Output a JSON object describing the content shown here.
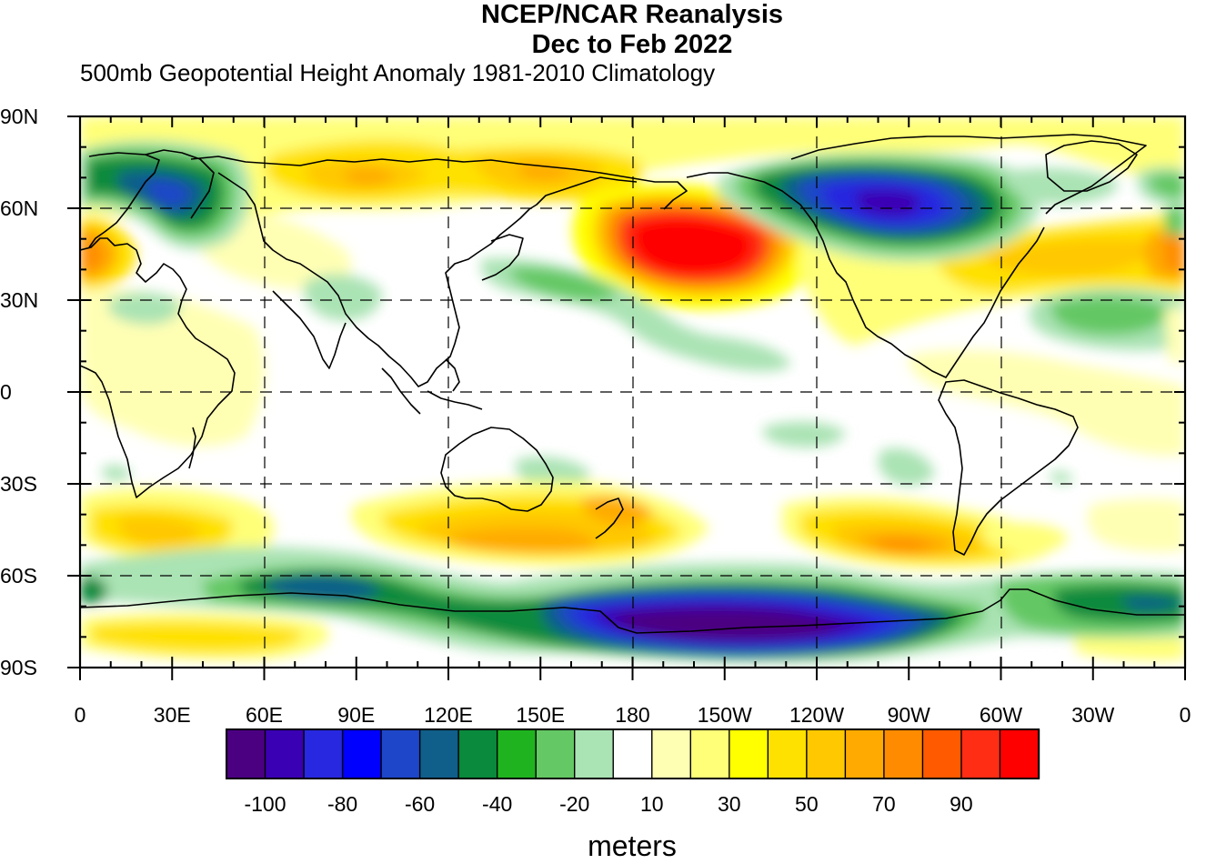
{
  "header": {
    "title_line1": "NCEP/NCAR Reanalysis",
    "title_line2": "Dec to Feb 2022",
    "subtitle": "500mb Geopotential Height Anomaly  1981-2010 Climatology"
  },
  "axes": {
    "lat_labels": [
      "90N",
      "60N",
      "30N",
      "0",
      "30S",
      "60S",
      "90S"
    ],
    "lon_labels": [
      "0",
      "30E",
      "60E",
      "90E",
      "120E",
      "150E",
      "180",
      "150W",
      "120W",
      "90W",
      "60W",
      "30W",
      "0"
    ]
  },
  "colorbar": {
    "labels": [
      "-100",
      "-80",
      "-60",
      "-40",
      "-20",
      "10",
      "30",
      "50",
      "70",
      "90"
    ],
    "colors": [
      "#4b0082",
      "#3a00b4",
      "#2828e0",
      "#0000ff",
      "#1e46c8",
      "#105e8a",
      "#0a8a3c",
      "#1fb41f",
      "#64c864",
      "#aae3b4",
      "#ffffff",
      "#ffffb4",
      "#ffff78",
      "#ffff00",
      "#ffe100",
      "#ffc800",
      "#ffaa00",
      "#ff8c00",
      "#ff5a00",
      "#ff2d14",
      "#ff0000"
    ],
    "units": "meters"
  },
  "map": {
    "projection": "cylindrical equidistant, 0 to 360 longitude",
    "gridlines": "dashed every 30 degrees",
    "anomaly_features": [
      {
        "region": "North Pacific / Aleutians",
        "sign": "positive",
        "value": 90
      },
      {
        "region": "Northern Canada / Hudson Bay",
        "sign": "negative",
        "value": -80
      },
      {
        "region": "Scandinavia / Northwest Russia",
        "sign": "negative",
        "value": -60
      },
      {
        "region": "Antarctica / Ross Sea",
        "sign": "negative",
        "value": -100
      },
      {
        "region": "Siberia / Arctic coast",
        "sign": "positive",
        "value": 70
      },
      {
        "region": "Western Europe / North Atlantic",
        "sign": "positive",
        "value": 60
      },
      {
        "region": "South Pacific west of Chile",
        "sign": "positive",
        "value": 60
      },
      {
        "region": "Southern Ocean south of Australia",
        "sign": "positive",
        "value": 50
      }
    ]
  }
}
